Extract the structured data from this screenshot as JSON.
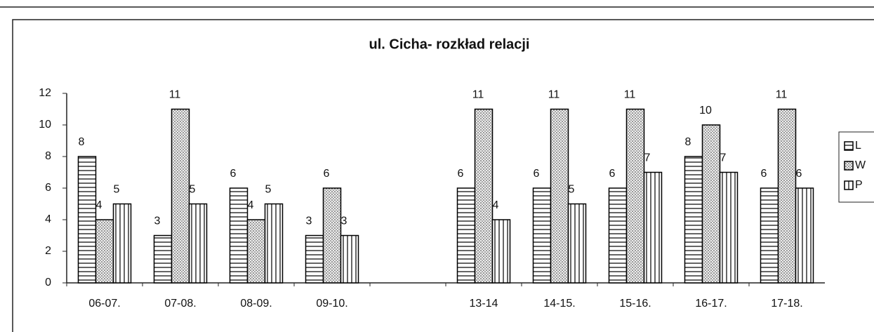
{
  "chart_data": {
    "type": "bar",
    "title": "ul. Cicha- rozkład relacji",
    "categories": [
      "06-07.",
      "07-08.",
      "08-09.",
      "09-10.",
      null,
      "13-14",
      "14-15.",
      "15-16.",
      "16-17.",
      "17-18."
    ],
    "series": [
      {
        "name": "L",
        "values": [
          8,
          3,
          6,
          3,
          null,
          6,
          6,
          6,
          8,
          6
        ]
      },
      {
        "name": "W",
        "values": [
          4,
          11,
          4,
          6,
          null,
          11,
          11,
          11,
          10,
          11
        ]
      },
      {
        "name": "P",
        "values": [
          5,
          5,
          5,
          3,
          null,
          4,
          5,
          7,
          7,
          6
        ]
      }
    ],
    "ylim": [
      0,
      12
    ],
    "yticks": [
      0,
      2,
      4,
      6,
      8,
      10,
      12
    ],
    "legend": "right"
  }
}
